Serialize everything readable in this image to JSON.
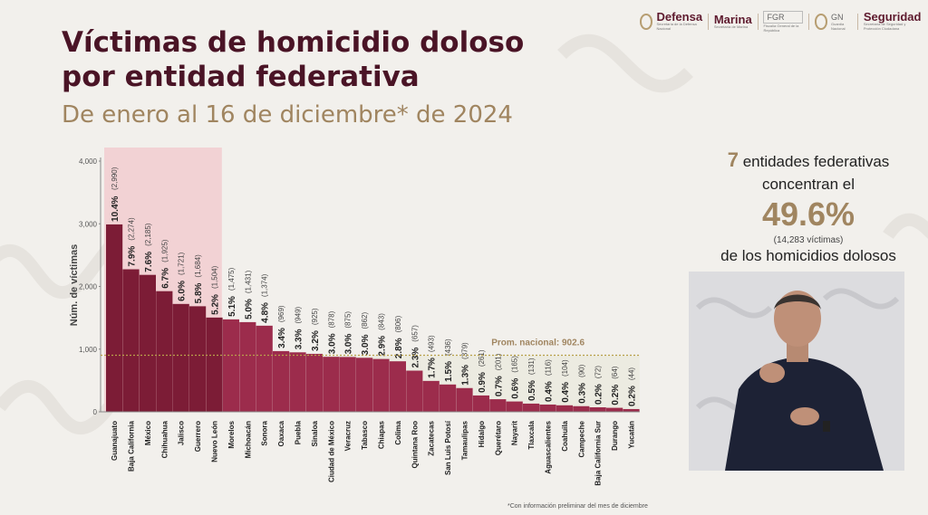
{
  "header": {
    "title_line1": "Víctimas de homicidio doloso",
    "title_line2": "por entidad federativa",
    "subtitle": "De enero al 16 de diciembre* de 2024"
  },
  "logos": [
    {
      "name": "Defensa",
      "sub": "Secretaría de la Defensa Nacional"
    },
    {
      "name": "Marina",
      "sub": "Secretaría de Marina"
    },
    {
      "name": "FGR",
      "sub": "Fiscalía General de la República"
    },
    {
      "name": "GN",
      "sub": "Guardia Nacional"
    },
    {
      "name": "Seguridad",
      "sub": "Secretaría de Seguridad y Protección Ciudadana"
    }
  ],
  "kpi": {
    "count": "7",
    "line1": "entidades federativas",
    "line2": "concentran el",
    "percent": "49.6%",
    "victims": "(14,283 víctimas)",
    "line3": "de los homicidios dolosos"
  },
  "footnote": "*Con información preliminar del mes de diciembre",
  "colors": {
    "highlight": "#7c1c36",
    "normal": "#9c2c4c",
    "gold": "#a08560",
    "title": "#4a1426"
  },
  "chart_data": {
    "type": "bar",
    "ylabel": "Núm. de víctimas",
    "ylim": [
      0,
      4000
    ],
    "yticks": [
      "0",
      "1,000",
      "2,000",
      "3,000",
      "4,000"
    ],
    "average_label": "Prom. nacional: 902.6",
    "average_value": 902.6,
    "highlighted_count": 7,
    "categories": [
      "Guanajuato",
      "Baja California",
      "México",
      "Chihuahua",
      "Jalisco",
      "Guerrero",
      "Nuevo León",
      "Morelos",
      "Michoacán",
      "Sonora",
      "Oaxaca",
      "Puebla",
      "Sinaloa",
      "Ciudad de México",
      "Veracruz",
      "Tabasco",
      "Chiapas",
      "Colima",
      "Quintana Roo",
      "Zacatecas",
      "San Luis Potosí",
      "Tamaulipas",
      "Hidalgo",
      "Querétaro",
      "Nayarit",
      "Tlaxcala",
      "Aguascalientes",
      "Coahuila",
      "Campeche",
      "Baja California Sur",
      "Durango",
      "Yucatán"
    ],
    "values": [
      2990,
      2274,
      2185,
      1925,
      1721,
      1684,
      1504,
      1475,
      1431,
      1374,
      969,
      949,
      925,
      878,
      875,
      862,
      843,
      806,
      657,
      493,
      436,
      379,
      261,
      201,
      165,
      131,
      116,
      104,
      90,
      72,
      64,
      44
    ],
    "value_labels": [
      "(2,990)",
      "(2,274)",
      "(2,185)",
      "(1,925)",
      "(1,721)",
      "(1,684)",
      "(1,504)",
      "(1,475)",
      "(1,431)",
      "(1,374)",
      "(969)",
      "(949)",
      "(925)",
      "(878)",
      "(875)",
      "(862)",
      "(843)",
      "(806)",
      "(657)",
      "(493)",
      "(436)",
      "(379)",
      "(261)",
      "(201)",
      "(165)",
      "(131)",
      "(116)",
      "(104)",
      "(90)",
      "(72)",
      "(64)",
      "(44)"
    ],
    "percent_labels": [
      "10.4%",
      "7.9%",
      "7.6%",
      "6.7%",
      "6.0%",
      "5.8%",
      "5.2%",
      "5.1%",
      "5.0%",
      "4.8%",
      "3.4%",
      "3.3%",
      "3.2%",
      "3.0%",
      "3.0%",
      "3.0%",
      "2.9%",
      "2.8%",
      "2.3%",
      "1.7%",
      "1.5%",
      "1.3%",
      "0.9%",
      "0.7%",
      "0.6%",
      "0.5%",
      "0.4%",
      "0.4%",
      "0.3%",
      "0.2%",
      "0.2%",
      "0.2%"
    ]
  }
}
